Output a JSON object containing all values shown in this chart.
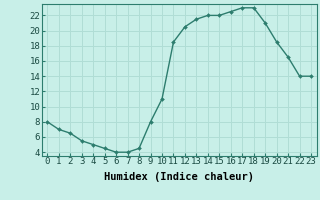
{
  "x": [
    0,
    1,
    2,
    3,
    4,
    5,
    6,
    7,
    8,
    9,
    10,
    11,
    12,
    13,
    14,
    15,
    16,
    17,
    18,
    19,
    20,
    21,
    22,
    23
  ],
  "y": [
    8,
    7,
    6.5,
    5.5,
    5,
    4.5,
    4,
    4,
    4.5,
    8,
    11,
    18.5,
    20.5,
    21.5,
    22,
    22,
    22.5,
    23,
    23,
    21,
    18.5,
    16.5,
    14,
    14
  ],
  "line_color": "#2d7d6e",
  "marker_color": "#2d7d6e",
  "bg_color": "#c8efe8",
  "grid_color": "#b0ddd5",
  "xlabel": "Humidex (Indice chaleur)",
  "xlim": [
    -0.5,
    23.5
  ],
  "ylim": [
    3.5,
    23.5
  ],
  "ytick_vals": [
    4,
    6,
    8,
    10,
    12,
    14,
    16,
    18,
    20,
    22
  ],
  "xtick_vals": [
    0,
    1,
    2,
    3,
    4,
    5,
    6,
    7,
    8,
    9,
    10,
    11,
    12,
    13,
    14,
    15,
    16,
    17,
    18,
    19,
    20,
    21,
    22,
    23
  ],
  "tick_fontsize": 6.5,
  "xlabel_fontsize": 7.5
}
